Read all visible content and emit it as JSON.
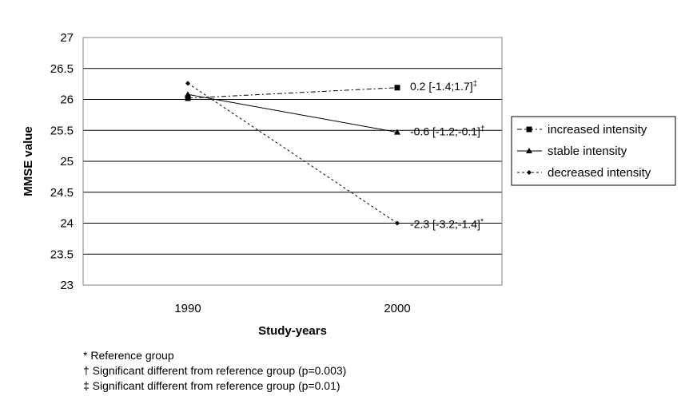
{
  "chart_data": {
    "type": "line",
    "title": "",
    "xlabel": "Study-years",
    "ylabel": "MMSE value",
    "categories": [
      "1990",
      "2000"
    ],
    "ylim": [
      23,
      27
    ],
    "yticks": [
      "23",
      "23.5",
      "24",
      "24.5",
      "25",
      "25.5",
      "26",
      "26.5",
      "27"
    ],
    "grid": true,
    "legend_position": "right",
    "series": [
      {
        "name": "increased intensity",
        "values": [
          26.02,
          26.19
        ],
        "line": "dash-dot",
        "marker": "square",
        "annotation": {
          "text": "0.2 [-1.4;1.7]",
          "sup": "‡"
        }
      },
      {
        "name": "stable intensity",
        "values": [
          26.08,
          25.47
        ],
        "line": "solid",
        "marker": "triangle",
        "annotation": {
          "text": "-0.6 [-1.2;-0.1]",
          "sup": "†"
        }
      },
      {
        "name": "decreased intensity",
        "values": [
          26.26,
          24.0
        ],
        "line": "dotted",
        "marker": "diamond",
        "annotation": {
          "text": "-2.3 [-3.2;-1.4]",
          "sup": "*"
        }
      }
    ]
  },
  "footnotes": [
    "* Reference group",
    "† Significant different from reference group (p=0.003)",
    "‡ Significant different from reference group (p=0.01)"
  ],
  "colors": {
    "line": "#000000",
    "grid": "#000000",
    "background": "#ffffff"
  }
}
